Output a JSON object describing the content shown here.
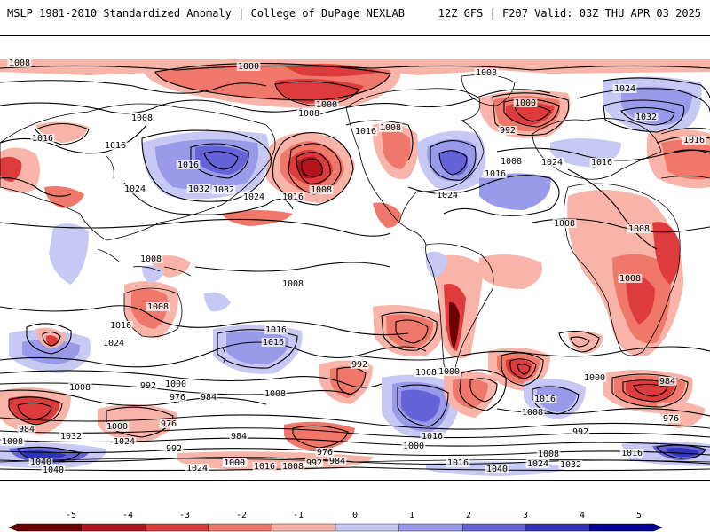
{
  "header": {
    "title": "MSLP 1981-2010 Standardized Anomaly | College of DuPage NEXLAB",
    "run_info": "12Z GFS | F207 Valid: 03Z THU APR 03 2025"
  },
  "colors": {
    "neg5": "#6e0000",
    "neg4": "#b4141c",
    "neg3": "#de3c3c",
    "neg2": "#f0786a",
    "neg1": "#f8b4a8",
    "neutral": "#ffffff",
    "pos1": "#c8c8f4",
    "pos2": "#9a9aea",
    "pos3": "#6464d8",
    "pos4": "#3232c0",
    "pos5": "#0000a0"
  },
  "legend": {
    "ticks": [
      "-5",
      "-4",
      "-3",
      "-2",
      "-1",
      "0",
      "1",
      "2",
      "3",
      "4",
      "5"
    ]
  },
  "isobar_labels": [
    {
      "text": "1008"
    },
    {
      "text": "1000"
    },
    {
      "text": "1008"
    },
    {
      "text": "1000"
    },
    {
      "text": "1008"
    },
    {
      "text": "1024"
    },
    {
      "text": "1000"
    },
    {
      "text": "1032"
    },
    {
      "text": "992"
    },
    {
      "text": "1016"
    },
    {
      "text": "1016"
    },
    {
      "text": "1016"
    },
    {
      "text": "1008"
    },
    {
      "text": "1008"
    },
    {
      "text": "1016"
    },
    {
      "text": "1024"
    },
    {
      "text": "1032"
    },
    {
      "text": "1024"
    },
    {
      "text": "1016"
    },
    {
      "text": "1008"
    },
    {
      "text": "1016"
    },
    {
      "text": "1032"
    },
    {
      "text": "1024"
    },
    {
      "text": "1008"
    },
    {
      "text": "1016"
    },
    {
      "text": "1024"
    },
    {
      "text": "1016"
    },
    {
      "text": "1008"
    },
    {
      "text": "1008"
    },
    {
      "text": "1008"
    },
    {
      "text": "1008"
    },
    {
      "text": "1008"
    },
    {
      "text": "1008"
    },
    {
      "text": "1016"
    },
    {
      "text": "1024"
    },
    {
      "text": "1016"
    },
    {
      "text": "1016"
    },
    {
      "text": "992"
    },
    {
      "text": "1008"
    },
    {
      "text": "1000"
    },
    {
      "text": "1000"
    },
    {
      "text": "984"
    },
    {
      "text": "1008"
    },
    {
      "text": "992"
    },
    {
      "text": "1000"
    },
    {
      "text": "984"
    },
    {
      "text": "976"
    },
    {
      "text": "1008"
    },
    {
      "text": "1016"
    },
    {
      "text": "1008"
    },
    {
      "text": "984"
    },
    {
      "text": "976"
    },
    {
      "text": "992"
    },
    {
      "text": "1000"
    },
    {
      "text": "1016"
    },
    {
      "text": "1024"
    },
    {
      "text": "1000"
    },
    {
      "text": "984"
    },
    {
      "text": "1032"
    },
    {
      "text": "1008"
    },
    {
      "text": "1040"
    },
    {
      "text": "1040"
    },
    {
      "text": "1024"
    },
    {
      "text": "1000"
    },
    {
      "text": "1016"
    },
    {
      "text": "1008"
    },
    {
      "text": "992"
    },
    {
      "text": "984"
    },
    {
      "text": "976"
    },
    {
      "text": "1000"
    },
    {
      "text": "1016"
    },
    {
      "text": "1040"
    },
    {
      "text": "1024"
    },
    {
      "text": "1032"
    },
    {
      "text": "1008"
    },
    {
      "text": "1016"
    },
    {
      "text": "992"
    },
    {
      "text": "976"
    }
  ]
}
